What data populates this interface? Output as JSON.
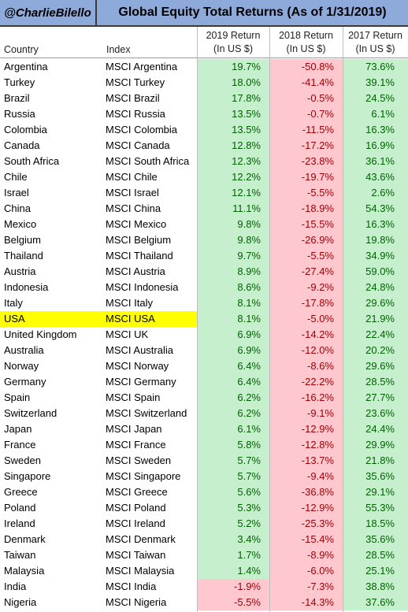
{
  "header": {
    "handle": "@CharlieBilello",
    "title": "Global Equity Total Returns (As of  1/31/2019)"
  },
  "columns": {
    "country": "Country",
    "index": "Index",
    "r2019": [
      "2019 Return",
      "(In US $)"
    ],
    "r2018": [
      "2018 Return",
      "(In US $)"
    ],
    "r2017": [
      "2017 Return",
      "(In US $)"
    ]
  },
  "colors": {
    "header_bg": "#8eaadb",
    "positive_bg": "#c6efce",
    "positive_text": "#006100",
    "negative_bg": "#ffc7ce",
    "negative_text": "#9c0006",
    "highlight": "#ffff00"
  },
  "highlighted_country": "USA",
  "rows": [
    {
      "country": "Argentina",
      "index": "MSCI Argentina",
      "r2019": "19.7%",
      "r2018": "-50.8%",
      "r2017": "73.6%"
    },
    {
      "country": "Turkey",
      "index": "MSCI Turkey",
      "r2019": "18.0%",
      "r2018": "-41.4%",
      "r2017": "39.1%"
    },
    {
      "country": "Brazil",
      "index": "MSCI Brazil",
      "r2019": "17.8%",
      "r2018": "-0.5%",
      "r2017": "24.5%"
    },
    {
      "country": "Russia",
      "index": "MSCI Russia",
      "r2019": "13.5%",
      "r2018": "-0.7%",
      "r2017": "6.1%"
    },
    {
      "country": "Colombia",
      "index": "MSCI Colombia",
      "r2019": "13.5%",
      "r2018": "-11.5%",
      "r2017": "16.3%"
    },
    {
      "country": "Canada",
      "index": "MSCI Canada",
      "r2019": "12.8%",
      "r2018": "-17.2%",
      "r2017": "16.9%"
    },
    {
      "country": "South Africa",
      "index": "MSCI South Africa",
      "r2019": "12.3%",
      "r2018": "-23.8%",
      "r2017": "36.1%"
    },
    {
      "country": "Chile",
      "index": "MSCI Chile",
      "r2019": "12.2%",
      "r2018": "-19.7%",
      "r2017": "43.6%"
    },
    {
      "country": "Israel",
      "index": "MSCI Israel",
      "r2019": "12.1%",
      "r2018": "-5.5%",
      "r2017": "2.6%"
    },
    {
      "country": "China",
      "index": "MSCI China",
      "r2019": "11.1%",
      "r2018": "-18.9%",
      "r2017": "54.3%"
    },
    {
      "country": "Mexico",
      "index": "MSCI Mexico",
      "r2019": "9.8%",
      "r2018": "-15.5%",
      "r2017": "16.3%"
    },
    {
      "country": "Belgium",
      "index": "MSCI Belgium",
      "r2019": "9.8%",
      "r2018": "-26.9%",
      "r2017": "19.8%"
    },
    {
      "country": "Thailand",
      "index": "MSCI Thailand",
      "r2019": "9.7%",
      "r2018": "-5.5%",
      "r2017": "34.9%"
    },
    {
      "country": "Austria",
      "index": "MSCI Austria",
      "r2019": "8.9%",
      "r2018": "-27.4%",
      "r2017": "59.0%"
    },
    {
      "country": "Indonesia",
      "index": "MSCI Indonesia",
      "r2019": "8.6%",
      "r2018": "-9.2%",
      "r2017": "24.8%"
    },
    {
      "country": "Italy",
      "index": "MSCI Italy",
      "r2019": "8.1%",
      "r2018": "-17.8%",
      "r2017": "29.6%"
    },
    {
      "country": "USA",
      "index": "MSCI USA",
      "r2019": "8.1%",
      "r2018": "-5.0%",
      "r2017": "21.9%"
    },
    {
      "country": "United Kingdom",
      "index": "MSCI UK",
      "r2019": "6.9%",
      "r2018": "-14.2%",
      "r2017": "22.4%"
    },
    {
      "country": "Australia",
      "index": "MSCI Australia",
      "r2019": "6.9%",
      "r2018": "-12.0%",
      "r2017": "20.2%"
    },
    {
      "country": "Norway",
      "index": "MSCI Norway",
      "r2019": "6.4%",
      "r2018": "-8.6%",
      "r2017": "29.6%"
    },
    {
      "country": "Germany",
      "index": "MSCI Germany",
      "r2019": "6.4%",
      "r2018": "-22.2%",
      "r2017": "28.5%"
    },
    {
      "country": "Spain",
      "index": "MSCI Spain",
      "r2019": "6.2%",
      "r2018": "-16.2%",
      "r2017": "27.7%"
    },
    {
      "country": "Switzerland",
      "index": "MSCI Switzerland",
      "r2019": "6.2%",
      "r2018": "-9.1%",
      "r2017": "23.6%"
    },
    {
      "country": "Japan",
      "index": "MSCI Japan",
      "r2019": "6.1%",
      "r2018": "-12.9%",
      "r2017": "24.4%"
    },
    {
      "country": "France",
      "index": "MSCI France",
      "r2019": "5.8%",
      "r2018": "-12.8%",
      "r2017": "29.9%"
    },
    {
      "country": "Sweden",
      "index": "MSCI Sweden",
      "r2019": "5.7%",
      "r2018": "-13.7%",
      "r2017": "21.8%"
    },
    {
      "country": "Singapore",
      "index": "MSCI Singapore",
      "r2019": "5.7%",
      "r2018": "-9.4%",
      "r2017": "35.6%"
    },
    {
      "country": "Greece",
      "index": "MSCI Greece",
      "r2019": "5.6%",
      "r2018": "-36.8%",
      "r2017": "29.1%"
    },
    {
      "country": "Poland",
      "index": "MSCI Poland",
      "r2019": "5.3%",
      "r2018": "-12.9%",
      "r2017": "55.3%"
    },
    {
      "country": "Ireland",
      "index": "MSCI Ireland",
      "r2019": "5.2%",
      "r2018": "-25.3%",
      "r2017": "18.5%"
    },
    {
      "country": "Denmark",
      "index": "MSCI Denmark",
      "r2019": "3.4%",
      "r2018": "-15.4%",
      "r2017": "35.6%"
    },
    {
      "country": "Taiwan",
      "index": "MSCI Taiwan",
      "r2019": "1.7%",
      "r2018": "-8.9%",
      "r2017": "28.5%"
    },
    {
      "country": "Malaysia",
      "index": "MSCI Malaysia",
      "r2019": "1.4%",
      "r2018": "-6.0%",
      "r2017": "25.1%"
    },
    {
      "country": "India",
      "index": "MSCI India",
      "r2019": "-1.9%",
      "r2018": "-7.3%",
      "r2017": "38.8%"
    },
    {
      "country": "Nigeria",
      "index": "MSCI Nigeria",
      "r2019": "-5.5%",
      "r2018": "-14.3%",
      "r2017": "37.6%"
    }
  ]
}
